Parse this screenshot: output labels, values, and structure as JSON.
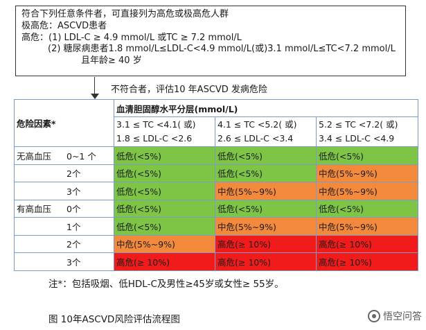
{
  "criteria": {
    "line1": "符合下列任意条件者，可直接列为高危或极高危人群",
    "line2": "极高危：ASCVD患者",
    "line3": "高危：(1) LDL-C ≥ 4.9 mmol/L 或TC ≥ 7.2 mmol/L",
    "line4": "(2) 糖尿病患者1.8 mmol/L≤LDL-C<4.9 mmol/L(或)3.1 mmol/L≤TC<7.2 mmol/L",
    "line5": "且年龄≥ 40 岁"
  },
  "arrow_text": "不符合者，评估10 年ASCVD 发病危险",
  "table": {
    "header_main": "血清胆固醇水平分层(mmol/L)",
    "header_factor": "危险因素*",
    "ranges": [
      {
        "line1": "3.1 ≤ TC <4.1( 或)",
        "line2": "1.8 ≤ LDL-C <2.6"
      },
      {
        "line1": "4.1 ≤ TC <5.2( 或)",
        "line2": "2.6 ≤ LDL-C <3.4"
      },
      {
        "line1": "5.2 ≤ TC <7.2( 或)",
        "line2": "3.4 ≤ LDL-C <4.9"
      }
    ],
    "rows": [
      {
        "group": "无高血压",
        "count": "0~1 个",
        "cells": [
          {
            "text": "低危(<5%)",
            "level": "green"
          },
          {
            "text": "低危(<5%)",
            "level": "green"
          },
          {
            "text": "低危(<5%)",
            "level": "green"
          }
        ]
      },
      {
        "group": "",
        "count": "2个",
        "cells": [
          {
            "text": "低危(<5%)",
            "level": "green"
          },
          {
            "text": "低危(<5%)",
            "level": "green"
          },
          {
            "text": "中危(5%~9%)",
            "level": "orange"
          }
        ]
      },
      {
        "group": "",
        "count": "3个",
        "cells": [
          {
            "text": "低危(<5%)",
            "level": "green"
          },
          {
            "text": "中危(5%~9%)",
            "level": "orange"
          },
          {
            "text": "中危(5%~9%)",
            "level": "orange"
          }
        ]
      },
      {
        "group": "有高血压",
        "count": "0个",
        "cells": [
          {
            "text": "低危(<5%)",
            "level": "green"
          },
          {
            "text": "低危(<5%)",
            "level": "green"
          },
          {
            "text": "低危(<5%)",
            "level": "green"
          }
        ]
      },
      {
        "group": "",
        "count": "1个",
        "cells": [
          {
            "text": "低危(<5%)",
            "level": "green"
          },
          {
            "text": "中危(5%~9%)",
            "level": "orange"
          },
          {
            "text": "中危(5%~9%)",
            "level": "orange"
          }
        ]
      },
      {
        "group": "",
        "count": "2个",
        "cells": [
          {
            "text": "中危(5%~9%)",
            "level": "orange"
          },
          {
            "text": "高危(≥ 10%)",
            "level": "red"
          },
          {
            "text": "高危(≥ 10%)",
            "level": "red"
          }
        ]
      },
      {
        "group": "",
        "count": "3个",
        "cells": [
          {
            "text": "高危(≥ 10%)",
            "level": "red"
          },
          {
            "text": "高危(≥ 10%)",
            "level": "red"
          },
          {
            "text": "高危(≥ 10%)",
            "level": "red"
          }
        ]
      }
    ]
  },
  "colors": {
    "green": "#7ec546",
    "orange": "#f2893b",
    "red": "#f21b1b",
    "border": "#7b9cc7"
  },
  "footnote": "注*：包括吸烟、低HDL-C及男性≥45岁或女性≥ 55岁。",
  "caption": "图 10年ASCVD风险评估流程图",
  "watermark": "悟空问答"
}
